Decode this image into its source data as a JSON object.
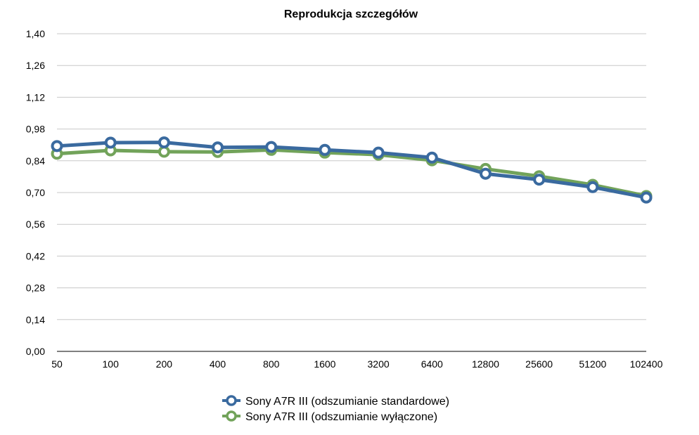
{
  "chart_data": {
    "type": "line",
    "title": "Reprodukcja szczegółów",
    "xlabel": "",
    "ylabel": "",
    "categories": [
      "50",
      "100",
      "200",
      "400",
      "800",
      "1600",
      "3200",
      "6400",
      "12800",
      "25600",
      "51200",
      "102400"
    ],
    "ylim": [
      0,
      1.4
    ],
    "yticks": [
      "0,00",
      "0,14",
      "0,28",
      "0,42",
      "0,56",
      "0,70",
      "0,84",
      "0,98",
      "1,12",
      "1,26",
      "1,40"
    ],
    "grid": true,
    "legend_position": "bottom",
    "series": [
      {
        "name": "Sony A7R III (odszumianie standardowe)",
        "color": "#3a6a9f",
        "values": [
          0.905,
          0.92,
          0.921,
          0.899,
          0.901,
          0.888,
          0.876,
          0.854,
          0.783,
          0.757,
          0.724,
          0.678
        ]
      },
      {
        "name": "Sony A7R III (odszumianie wyłączone)",
        "color": "#72a35a",
        "values": [
          0.871,
          0.886,
          0.88,
          0.879,
          0.888,
          0.876,
          0.867,
          0.842,
          0.804,
          0.772,
          0.734,
          0.685
        ]
      }
    ]
  }
}
